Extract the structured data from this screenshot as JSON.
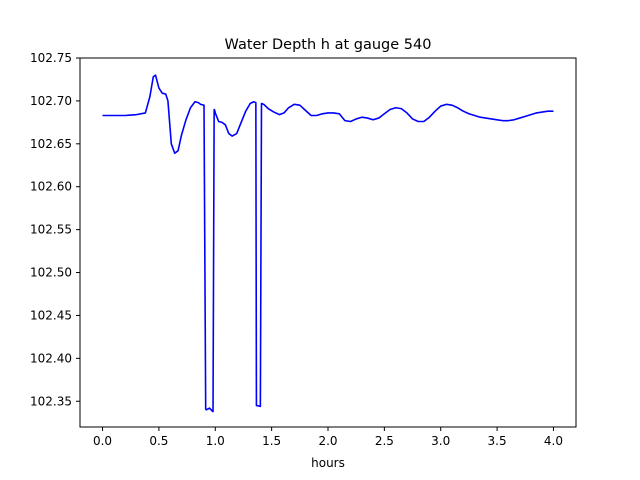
{
  "chart_data": {
    "type": "line",
    "title": "Water Depth h at gauge 540",
    "xlabel": "hours",
    "ylabel": "",
    "xlim": [
      -0.2,
      4.2
    ],
    "ylim": [
      102.32,
      102.75
    ],
    "xticks": [
      0.0,
      0.5,
      1.0,
      1.5,
      2.0,
      2.5,
      3.0,
      3.5,
      4.0
    ],
    "xtick_labels": [
      "0.0",
      "0.5",
      "1.0",
      "1.5",
      "2.0",
      "2.5",
      "3.0",
      "3.5",
      "4.0"
    ],
    "yticks": [
      102.35,
      102.4,
      102.45,
      102.5,
      102.55,
      102.6,
      102.65,
      102.7,
      102.75
    ],
    "ytick_labels": [
      "102.35",
      "102.40",
      "102.45",
      "102.50",
      "102.55",
      "102.60",
      "102.65",
      "102.70",
      "102.75"
    ],
    "grid": false,
    "series": [
      {
        "color": "#0000ff",
        "x": [
          0.0,
          0.1,
          0.2,
          0.3,
          0.38,
          0.42,
          0.45,
          0.47,
          0.5,
          0.53,
          0.56,
          0.58,
          0.61,
          0.64,
          0.67,
          0.7,
          0.74,
          0.78,
          0.82,
          0.85,
          0.87,
          0.9,
          0.915,
          0.92,
          0.95,
          0.97,
          0.98,
          0.99,
          0.995,
          1.0,
          1.03,
          1.06,
          1.09,
          1.12,
          1.15,
          1.19,
          1.23,
          1.27,
          1.31,
          1.34,
          1.36,
          1.365,
          1.37,
          1.4,
          1.41,
          1.43,
          1.47,
          1.52,
          1.57,
          1.61,
          1.65,
          1.7,
          1.75,
          1.8,
          1.85,
          1.9,
          1.95,
          2.0,
          2.05,
          2.1,
          2.15,
          2.2,
          2.25,
          2.3,
          2.35,
          2.4,
          2.45,
          2.5,
          2.55,
          2.6,
          2.65,
          2.7,
          2.75,
          2.8,
          2.85,
          2.9,
          2.95,
          3.0,
          3.05,
          3.1,
          3.15,
          3.2,
          3.25,
          3.3,
          3.35,
          3.4,
          3.45,
          3.5,
          3.55,
          3.6,
          3.65,
          3.7,
          3.75,
          3.8,
          3.85,
          3.9,
          3.95,
          4.0
        ],
        "y": [
          102.683,
          102.683,
          102.683,
          102.684,
          102.686,
          102.705,
          102.728,
          102.73,
          102.715,
          102.709,
          102.708,
          102.7,
          102.65,
          102.639,
          102.642,
          102.66,
          102.678,
          102.692,
          102.699,
          102.698,
          102.696,
          102.695,
          102.341,
          102.34,
          102.342,
          102.339,
          102.338,
          102.69,
          102.689,
          102.686,
          102.676,
          102.675,
          102.672,
          102.662,
          102.659,
          102.662,
          102.675,
          102.688,
          102.697,
          102.699,
          102.698,
          102.345,
          102.345,
          102.344,
          102.697,
          102.696,
          102.691,
          102.687,
          102.684,
          102.686,
          102.692,
          102.696,
          102.695,
          102.689,
          102.683,
          102.683,
          102.685,
          102.686,
          102.686,
          102.685,
          102.677,
          102.676,
          102.679,
          102.681,
          102.68,
          102.678,
          102.68,
          102.685,
          102.69,
          102.692,
          102.691,
          102.686,
          102.679,
          102.676,
          102.676,
          102.681,
          102.688,
          102.694,
          102.696,
          102.695,
          102.692,
          102.688,
          102.685,
          102.683,
          102.681,
          102.68,
          102.679,
          102.678,
          102.677,
          102.677,
          102.678,
          102.68,
          102.682,
          102.684,
          102.686,
          102.687,
          102.688,
          102.688
        ]
      }
    ]
  }
}
